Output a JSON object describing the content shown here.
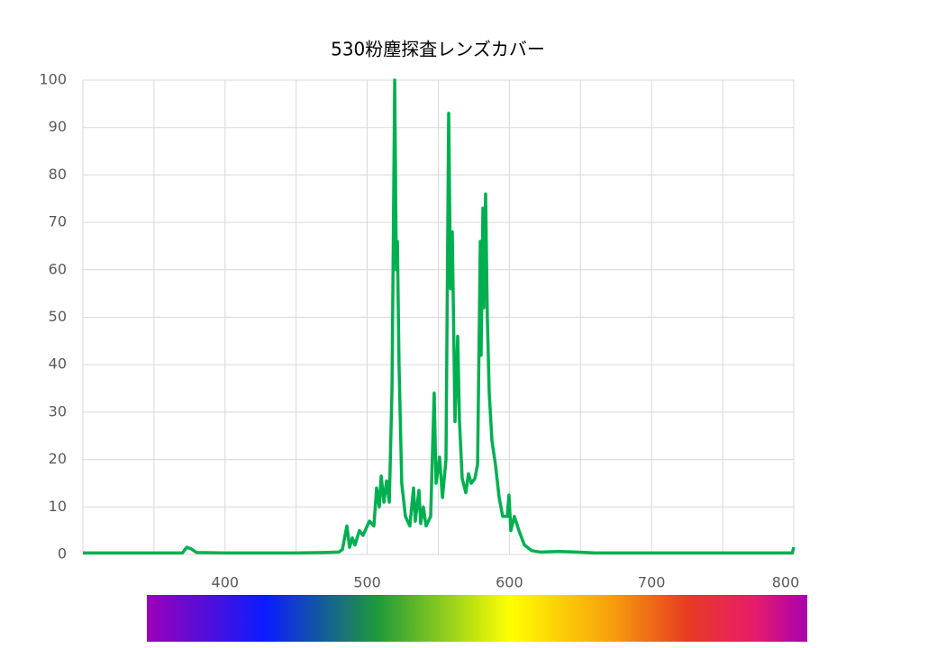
{
  "chart_data": {
    "type": "line",
    "title": "530粉塵探査レンズカバー",
    "x": [
      300,
      350,
      370,
      373,
      376,
      380,
      400,
      450,
      470,
      480,
      482.5,
      485.7,
      487.6,
      489.5,
      491.4,
      494.5,
      497,
      501.5,
      504.7,
      506.6,
      508.5,
      509.8,
      511.7,
      513.6,
      515.5,
      517.4,
      519.3,
      520.5,
      521.2,
      522.4,
      524.3,
      526.9,
      530,
      532.6,
      533.8,
      536.4,
      537.6,
      539.5,
      541.4,
      544.6,
      547.1,
      548.4,
      550.9,
      552.9,
      555.4,
      557.3,
      558.6,
      559.8,
      561.7,
      563.6,
      564.9,
      566.8,
      569.3,
      571.2,
      573.1,
      575.7,
      577.6,
      579.5,
      580.1,
      581.4,
      582,
      583.3,
      584.5,
      585.8,
      587.7,
      590.2,
      592.8,
      595.3,
      598.5,
      599.7,
      601,
      603.5,
      606.7,
      610.5,
      615.6,
      621.9,
      634.6,
      647.3,
      660,
      700,
      750,
      799,
      800
    ],
    "series": [
      {
        "color": "#00b050",
        "values": [
          0.3,
          0.3,
          0.3,
          1.5,
          1.2,
          0.4,
          0.3,
          0.3,
          0.4,
          0.5,
          1,
          6,
          1.5,
          3.5,
          2,
          5,
          4,
          7,
          6,
          14,
          10,
          16.5,
          11,
          15.5,
          11,
          35,
          100,
          60,
          66,
          40,
          15,
          8,
          6,
          14,
          7,
          13.5,
          6.5,
          10,
          6,
          8,
          34,
          15,
          20.5,
          12,
          20,
          93,
          56,
          68,
          28,
          46,
          28,
          16,
          13,
          17,
          15,
          16,
          19,
          66,
          42,
          73,
          52,
          76,
          50,
          34,
          24,
          19,
          12,
          8,
          8,
          12.5,
          5,
          8,
          5,
          2,
          0.8,
          0.5,
          0.6,
          0.5,
          0.3,
          0.3,
          0.3,
          0.3,
          1.5
        ]
      }
    ],
    "xlim": [
      300,
      800
    ],
    "xticks": [
      400,
      500,
      600,
      700,
      800
    ],
    "xgrid": [
      300,
      350,
      400,
      450,
      500,
      550,
      600,
      650,
      700,
      750,
      800
    ],
    "ylim": [
      0,
      100
    ],
    "yticks": [
      0,
      10,
      20,
      30,
      40,
      50,
      60,
      70,
      80,
      90,
      100
    ],
    "grid": true
  }
}
